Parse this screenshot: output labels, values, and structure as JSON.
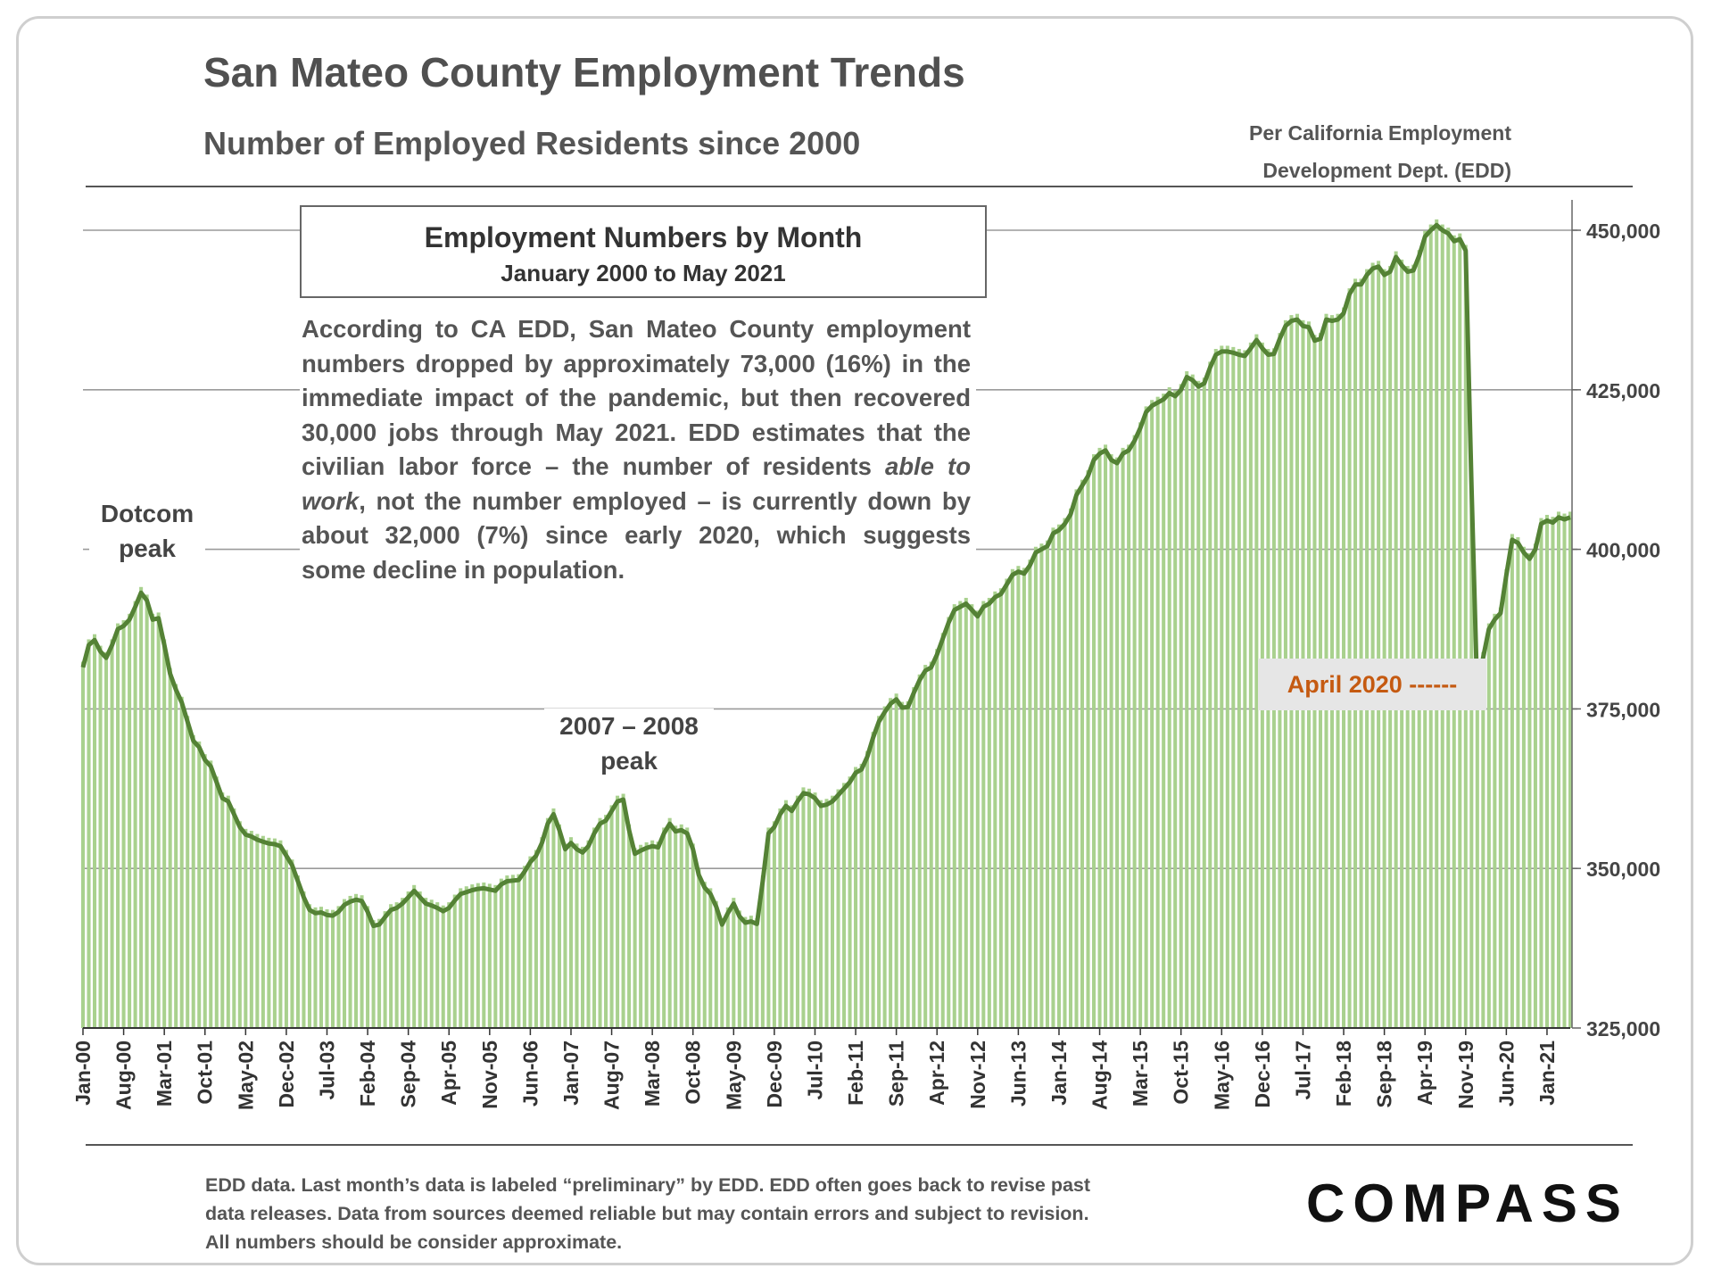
{
  "header": {
    "title": "San Mateo County Employment Trends",
    "subtitle": "Number of Employed Residents since 2000",
    "source_line1": "Per California Employment",
    "source_line2": "Development Dept. (EDD)"
  },
  "callout": {
    "heading": "Employment Numbers by Month",
    "subheading": "January 2000 to May 2021",
    "text_part1": "According to CA EDD, San Mateo County employment numbers dropped by approximately 73,000 (16%) in the immediate impact of the pandemic, but then recovered 30,000 jobs through May 2021. EDD estimates that the civilian labor force – the number of residents ",
    "text_italic": "able to work",
    "text_part2": ", not the number employed – is currently down by about 32,000 (7%) since early 2020, which suggests some decline in population."
  },
  "annotations": {
    "dotcom_line1": "Dotcom",
    "dotcom_line2": "peak",
    "peak0708_line1": "2007 – 2008",
    "peak0708_line2": "peak",
    "april2020": "April 2020 ------"
  },
  "footer": {
    "line1": "EDD data. Last month’s data is labeled “preliminary” by EDD. EDD often goes back to revise past",
    "line2": "data releases. Data from sources deemed reliable but may contain errors and subject to revision.",
    "line3": "All numbers should be consider approximate.",
    "logo": "COMPASS"
  },
  "colors": {
    "line": "#548235",
    "bar": "#a9d18e",
    "grid": "#9a9a9a",
    "accent": "#c55a11"
  },
  "chart_data": {
    "type": "bar",
    "title": "Employment Numbers by Month",
    "xlabel": "",
    "ylabel": "",
    "ylim": [
      325000,
      450000
    ],
    "yticks": [
      325000,
      350000,
      375000,
      400000,
      425000,
      450000
    ],
    "ytick_labels": [
      "325,000",
      "350,000",
      "375,000",
      "400,000",
      "425,000",
      "450,000"
    ],
    "grid": true,
    "x_start": "Jan-00",
    "x_end": "May-21",
    "n_months": 257,
    "xtick_labels": [
      "Jan-00",
      "Aug-00",
      "Mar-01",
      "Oct-01",
      "May-02",
      "Dec-02",
      "Jul-03",
      "Feb-04",
      "Sep-04",
      "Apr-05",
      "Nov-05",
      "Jun-06",
      "Jan-07",
      "Aug-07",
      "Mar-08",
      "Oct-08",
      "May-09",
      "Dec-09",
      "Jul-10",
      "Feb-11",
      "Sep-11",
      "Apr-12",
      "Nov-12",
      "Jun-13",
      "Jan-14",
      "Aug-14",
      "Mar-15",
      "Oct-15",
      "May-16",
      "Dec-16",
      "Jul-17",
      "Feb-18",
      "Sep-18",
      "Apr-19",
      "Nov-19",
      "Jun-20",
      "Jan-21"
    ],
    "series": [
      {
        "name": "Monthly employment (bars)",
        "style": "bar"
      },
      {
        "name": "Trend line",
        "style": "line"
      }
    ],
    "anchor_points": [
      [
        0,
        381500
      ],
      [
        1,
        385000
      ],
      [
        2,
        385800
      ],
      [
        3,
        384000
      ],
      [
        4,
        383000
      ],
      [
        5,
        385000
      ],
      [
        6,
        387500
      ],
      [
        7,
        388000
      ],
      [
        8,
        389000
      ],
      [
        9,
        391000
      ],
      [
        10,
        393200
      ],
      [
        11,
        392000
      ],
      [
        12,
        389000
      ],
      [
        13,
        389200
      ],
      [
        14,
        385000
      ],
      [
        15,
        380500
      ],
      [
        16,
        378000
      ],
      [
        17,
        376000
      ],
      [
        18,
        373000
      ],
      [
        19,
        370000
      ],
      [
        20,
        369000
      ],
      [
        21,
        367000
      ],
      [
        22,
        366000
      ],
      [
        23,
        363500
      ],
      [
        24,
        361000
      ],
      [
        25,
        360500
      ],
      [
        26,
        358500
      ],
      [
        27,
        356500
      ],
      [
        28,
        355300
      ],
      [
        29,
        355000
      ],
      [
        30,
        354500
      ],
      [
        31,
        354200
      ],
      [
        32,
        353900
      ],
      [
        33,
        353800
      ],
      [
        34,
        353500
      ],
      [
        35,
        352000
      ],
      [
        36,
        350500
      ],
      [
        37,
        348000
      ],
      [
        38,
        345500
      ],
      [
        39,
        343500
      ],
      [
        40,
        343000
      ],
      [
        41,
        343100
      ],
      [
        42,
        342700
      ],
      [
        43,
        342600
      ],
      [
        44,
        343200
      ],
      [
        45,
        344300
      ],
      [
        46,
        344800
      ],
      [
        47,
        345100
      ],
      [
        48,
        344900
      ],
      [
        49,
        343200
      ],
      [
        50,
        341000
      ],
      [
        51,
        341200
      ],
      [
        52,
        342400
      ],
      [
        53,
        343500
      ],
      [
        54,
        343800
      ],
      [
        55,
        344500
      ],
      [
        56,
        345500
      ],
      [
        57,
        346500
      ],
      [
        58,
        345500
      ],
      [
        59,
        344500
      ],
      [
        60,
        344200
      ],
      [
        61,
        343800
      ],
      [
        62,
        343300
      ],
      [
        63,
        343800
      ],
      [
        64,
        345000
      ],
      [
        65,
        346000
      ],
      [
        66,
        346300
      ],
      [
        67,
        346600
      ],
      [
        68,
        346800
      ],
      [
        69,
        346900
      ],
      [
        70,
        346700
      ],
      [
        71,
        346500
      ],
      [
        72,
        347500
      ],
      [
        73,
        348000
      ],
      [
        74,
        348100
      ],
      [
        75,
        348200
      ],
      [
        76,
        349500
      ],
      [
        77,
        351000
      ],
      [
        78,
        352000
      ],
      [
        79,
        354000
      ],
      [
        80,
        357000
      ],
      [
        81,
        358500
      ],
      [
        82,
        356000
      ],
      [
        83,
        353000
      ],
      [
        84,
        354000
      ],
      [
        85,
        353000
      ],
      [
        86,
        352500
      ],
      [
        87,
        353500
      ],
      [
        88,
        355500
      ],
      [
        89,
        357000
      ],
      [
        90,
        357500
      ],
      [
        91,
        359000
      ],
      [
        92,
        360500
      ],
      [
        93,
        360800
      ],
      [
        94,
        356000
      ],
      [
        95,
        352300
      ],
      [
        96,
        352800
      ],
      [
        97,
        353200
      ],
      [
        98,
        353500
      ],
      [
        99,
        353300
      ],
      [
        100,
        355500
      ],
      [
        101,
        357000
      ],
      [
        102,
        355800
      ],
      [
        103,
        356000
      ],
      [
        104,
        355500
      ],
      [
        105,
        353000
      ],
      [
        106,
        349000
      ],
      [
        107,
        347000
      ],
      [
        108,
        346000
      ],
      [
        109,
        344000
      ],
      [
        110,
        341200
      ],
      [
        111,
        343000
      ],
      [
        112,
        344500
      ],
      [
        113,
        342500
      ],
      [
        114,
        341500
      ],
      [
        115,
        341700
      ],
      [
        116,
        341300
      ],
      [
        117,
        348000
      ],
      [
        118,
        355500
      ],
      [
        119,
        356500
      ],
      [
        120,
        358500
      ],
      [
        121,
        359800
      ],
      [
        122,
        359000
      ],
      [
        123,
        360500
      ],
      [
        124,
        361800
      ],
      [
        125,
        361600
      ],
      [
        126,
        361000
      ],
      [
        127,
        359800
      ],
      [
        128,
        360000
      ],
      [
        129,
        360500
      ],
      [
        130,
        361500
      ],
      [
        131,
        362500
      ],
      [
        132,
        363500
      ],
      [
        133,
        365000
      ],
      [
        134,
        365500
      ],
      [
        135,
        367500
      ],
      [
        136,
        370500
      ],
      [
        137,
        373000
      ],
      [
        138,
        374500
      ],
      [
        139,
        375800
      ],
      [
        140,
        376500
      ],
      [
        141,
        375200
      ],
      [
        142,
        375300
      ],
      [
        143,
        377500
      ],
      [
        144,
        379500
      ],
      [
        145,
        381000
      ],
      [
        146,
        381500
      ],
      [
        147,
        383500
      ],
      [
        148,
        386000
      ],
      [
        149,
        388500
      ],
      [
        150,
        390500
      ],
      [
        151,
        391000
      ],
      [
        152,
        391500
      ],
      [
        153,
        390500
      ],
      [
        154,
        389500
      ],
      [
        155,
        391000
      ],
      [
        156,
        391500
      ],
      [
        157,
        392500
      ],
      [
        158,
        393000
      ],
      [
        159,
        394500
      ],
      [
        160,
        396000
      ],
      [
        161,
        396500
      ],
      [
        162,
        396200
      ],
      [
        163,
        397500
      ],
      [
        164,
        399500
      ],
      [
        165,
        400000
      ],
      [
        166,
        400500
      ],
      [
        167,
        402500
      ],
      [
        168,
        403000
      ],
      [
        169,
        404000
      ],
      [
        170,
        405500
      ],
      [
        171,
        408500
      ],
      [
        172,
        410000
      ],
      [
        173,
        411500
      ],
      [
        174,
        414000
      ],
      [
        175,
        415000
      ],
      [
        176,
        415500
      ],
      [
        177,
        414000
      ],
      [
        178,
        413500
      ],
      [
        179,
        415000
      ],
      [
        180,
        415500
      ],
      [
        181,
        417000
      ],
      [
        182,
        419000
      ],
      [
        183,
        421500
      ],
      [
        184,
        422500
      ],
      [
        185,
        423000
      ],
      [
        186,
        423500
      ],
      [
        187,
        424500
      ],
      [
        188,
        424000
      ],
      [
        189,
        425000
      ],
      [
        190,
        427000
      ],
      [
        191,
        426500
      ],
      [
        192,
        425500
      ],
      [
        193,
        426000
      ],
      [
        194,
        428500
      ],
      [
        195,
        430500
      ],
      [
        196,
        431000
      ],
      [
        197,
        431000
      ],
      [
        198,
        430800
      ],
      [
        199,
        430500
      ],
      [
        200,
        430300
      ],
      [
        201,
        431500
      ],
      [
        202,
        432800
      ],
      [
        203,
        431500
      ],
      [
        204,
        430500
      ],
      [
        205,
        430600
      ],
      [
        206,
        433000
      ],
      [
        207,
        435000
      ],
      [
        208,
        435800
      ],
      [
        209,
        436000
      ],
      [
        210,
        435000
      ],
      [
        211,
        434800
      ],
      [
        212,
        432700
      ],
      [
        213,
        433000
      ],
      [
        214,
        436000
      ],
      [
        215,
        435800
      ],
      [
        216,
        436000
      ],
      [
        217,
        437000
      ],
      [
        218,
        440000
      ],
      [
        219,
        441500
      ],
      [
        220,
        441500
      ],
      [
        221,
        443000
      ],
      [
        222,
        444000
      ],
      [
        223,
        444300
      ],
      [
        224,
        443000
      ],
      [
        225,
        443500
      ],
      [
        226,
        445800
      ],
      [
        227,
        444500
      ],
      [
        228,
        443500
      ],
      [
        229,
        443700
      ],
      [
        230,
        446000
      ],
      [
        231,
        449000
      ],
      [
        232,
        450000
      ],
      [
        233,
        450800
      ],
      [
        234,
        450000
      ],
      [
        235,
        449500
      ],
      [
        236,
        448300
      ],
      [
        237,
        448600
      ],
      [
        238,
        446800
      ],
      [
        239,
        410000
      ],
      [
        240,
        377000
      ],
      [
        241,
        383000
      ],
      [
        242,
        387500
      ],
      [
        243,
        389000
      ],
      [
        244,
        390000
      ],
      [
        245,
        396000
      ],
      [
        246,
        401500
      ],
      [
        247,
        401000
      ],
      [
        248,
        399500
      ],
      [
        249,
        398500
      ],
      [
        250,
        400000
      ],
      [
        251,
        404000
      ],
      [
        252,
        404500
      ],
      [
        253,
        404200
      ],
      [
        254,
        405000
      ],
      [
        255,
        404700
      ],
      [
        256,
        405000
      ]
    ]
  }
}
